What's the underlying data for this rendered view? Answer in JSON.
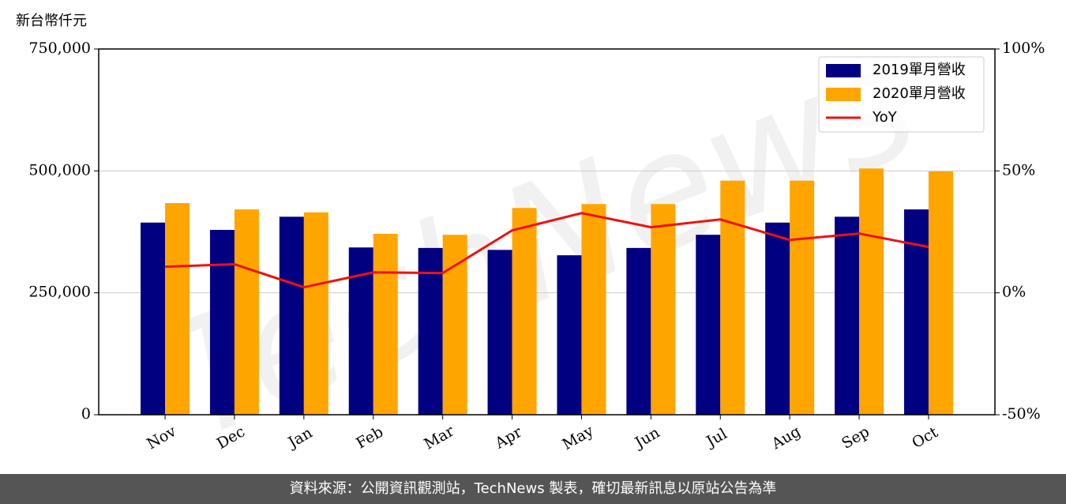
{
  "chart_data": {
    "type": "bar_line",
    "ylabel": "新台幣仟元",
    "watermark": "TechNews",
    "categories": [
      "Nov",
      "Dec",
      "Jan",
      "Feb",
      "Mar",
      "Apr",
      "May",
      "Jun",
      "Jul",
      "Aug",
      "Sep",
      "Oct"
    ],
    "series": [
      {
        "name": "2019單月營收",
        "color": "#000080",
        "kind": "bar",
        "values": [
          394000,
          379000,
          406000,
          343000,
          342000,
          338000,
          327000,
          342000,
          369000,
          394000,
          406000,
          421000
        ]
      },
      {
        "name": "2020單月營收",
        "color": "#ffa500",
        "kind": "bar",
        "values": [
          434000,
          421000,
          415000,
          371000,
          369000,
          424000,
          432000,
          432000,
          480000,
          480000,
          505000,
          499000
        ]
      },
      {
        "name": "YoY",
        "color": "#ee1111",
        "kind": "line",
        "axis": "y2",
        "values": [
          10.7,
          11.7,
          2.3,
          8.4,
          8.1,
          25.6,
          32.7,
          26.9,
          30.1,
          21.7,
          24.3,
          18.8
        ]
      }
    ],
    "ylim": [
      0,
      750000
    ],
    "yticks": [
      0,
      {
        "value": 250000,
        "label": "250,000"
      },
      {
        "value": 500000,
        "label": "500,000"
      },
      {
        "value": 750000,
        "label": "750,000"
      }
    ],
    "y2lim": [
      -50,
      100
    ],
    "y2ticks": [
      {
        "value": -50,
        "label": "-50%"
      },
      {
        "value": 0,
        "label": "0%"
      },
      {
        "value": 50,
        "label": "50%"
      },
      {
        "value": 100,
        "label": "100%"
      }
    ],
    "grid": true,
    "legend": "upper right"
  },
  "footer": "資料來源：公開資訊觀測站，TechNews 製表，確切最新訊息以原站公告為準"
}
